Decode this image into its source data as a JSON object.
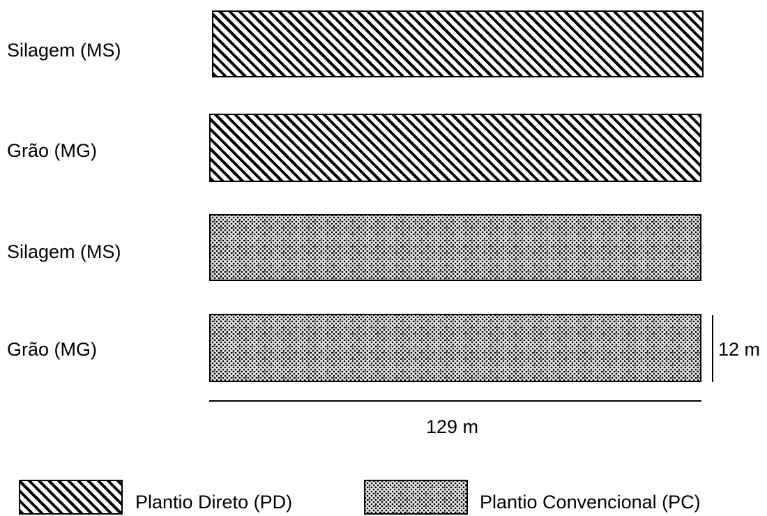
{
  "plots": [
    {
      "label": "Silagem (MS)",
      "system": "PD"
    },
    {
      "label": "Grão (MG)",
      "system": "PD"
    },
    {
      "label": "Silagem (MS)",
      "system": "PC"
    },
    {
      "label": "Grão (MG)",
      "system": "PC"
    }
  ],
  "dimensions": {
    "width_label": "129 m",
    "height_label": "12 m"
  },
  "legend": {
    "pd_label": "Plantio Direto (PD)",
    "pc_label": "Plantio Convencional (PC)"
  }
}
